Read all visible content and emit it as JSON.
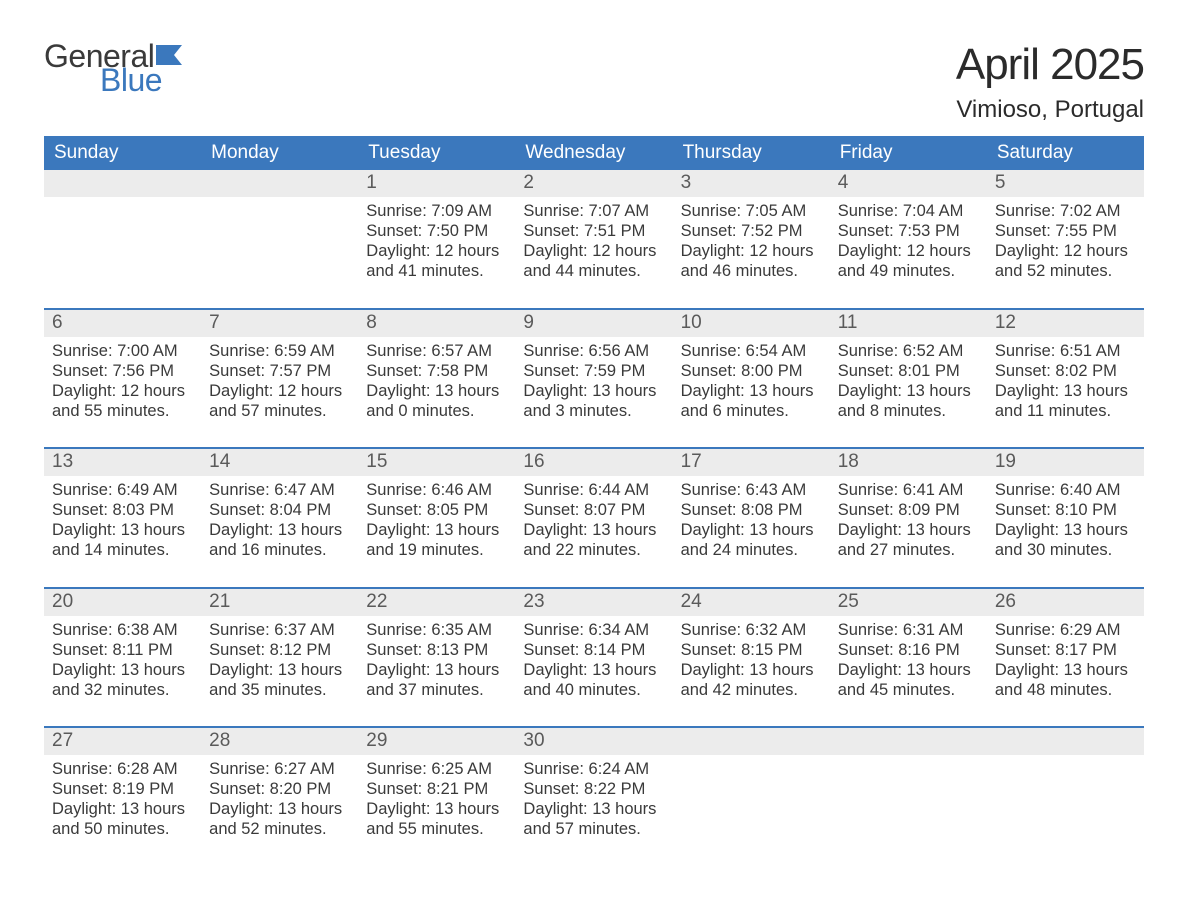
{
  "logo": {
    "text_general": "General",
    "text_blue": "Blue",
    "flag_color": "#3b78bd"
  },
  "title": "April 2025",
  "location": "Vimioso, Portugal",
  "colors": {
    "header_bg": "#3b78bd",
    "header_text": "#ffffff",
    "daynum_bg": "#ececec",
    "daynum_text": "#5a5a5a",
    "body_text": "#3a3a3a",
    "divider": "#3b78bd",
    "page_bg": "#ffffff"
  },
  "fonts": {
    "title_size_pt": 33,
    "location_size_pt": 18,
    "dow_size_pt": 14,
    "daynum_size_pt": 14,
    "body_size_pt": 12,
    "family": "Arial"
  },
  "days_of_week": [
    "Sunday",
    "Monday",
    "Tuesday",
    "Wednesday",
    "Thursday",
    "Friday",
    "Saturday"
  ],
  "weeks": [
    [
      {
        "num": "",
        "sunrise": "",
        "sunset": "",
        "daylight1": "",
        "daylight2": ""
      },
      {
        "num": "",
        "sunrise": "",
        "sunset": "",
        "daylight1": "",
        "daylight2": ""
      },
      {
        "num": "1",
        "sunrise": "Sunrise: 7:09 AM",
        "sunset": "Sunset: 7:50 PM",
        "daylight1": "Daylight: 12 hours",
        "daylight2": "and 41 minutes."
      },
      {
        "num": "2",
        "sunrise": "Sunrise: 7:07 AM",
        "sunset": "Sunset: 7:51 PM",
        "daylight1": "Daylight: 12 hours",
        "daylight2": "and 44 minutes."
      },
      {
        "num": "3",
        "sunrise": "Sunrise: 7:05 AM",
        "sunset": "Sunset: 7:52 PM",
        "daylight1": "Daylight: 12 hours",
        "daylight2": "and 46 minutes."
      },
      {
        "num": "4",
        "sunrise": "Sunrise: 7:04 AM",
        "sunset": "Sunset: 7:53 PM",
        "daylight1": "Daylight: 12 hours",
        "daylight2": "and 49 minutes."
      },
      {
        "num": "5",
        "sunrise": "Sunrise: 7:02 AM",
        "sunset": "Sunset: 7:55 PM",
        "daylight1": "Daylight: 12 hours",
        "daylight2": "and 52 minutes."
      }
    ],
    [
      {
        "num": "6",
        "sunrise": "Sunrise: 7:00 AM",
        "sunset": "Sunset: 7:56 PM",
        "daylight1": "Daylight: 12 hours",
        "daylight2": "and 55 minutes."
      },
      {
        "num": "7",
        "sunrise": "Sunrise: 6:59 AM",
        "sunset": "Sunset: 7:57 PM",
        "daylight1": "Daylight: 12 hours",
        "daylight2": "and 57 minutes."
      },
      {
        "num": "8",
        "sunrise": "Sunrise: 6:57 AM",
        "sunset": "Sunset: 7:58 PM",
        "daylight1": "Daylight: 13 hours",
        "daylight2": "and 0 minutes."
      },
      {
        "num": "9",
        "sunrise": "Sunrise: 6:56 AM",
        "sunset": "Sunset: 7:59 PM",
        "daylight1": "Daylight: 13 hours",
        "daylight2": "and 3 minutes."
      },
      {
        "num": "10",
        "sunrise": "Sunrise: 6:54 AM",
        "sunset": "Sunset: 8:00 PM",
        "daylight1": "Daylight: 13 hours",
        "daylight2": "and 6 minutes."
      },
      {
        "num": "11",
        "sunrise": "Sunrise: 6:52 AM",
        "sunset": "Sunset: 8:01 PM",
        "daylight1": "Daylight: 13 hours",
        "daylight2": "and 8 minutes."
      },
      {
        "num": "12",
        "sunrise": "Sunrise: 6:51 AM",
        "sunset": "Sunset: 8:02 PM",
        "daylight1": "Daylight: 13 hours",
        "daylight2": "and 11 minutes."
      }
    ],
    [
      {
        "num": "13",
        "sunrise": "Sunrise: 6:49 AM",
        "sunset": "Sunset: 8:03 PM",
        "daylight1": "Daylight: 13 hours",
        "daylight2": "and 14 minutes."
      },
      {
        "num": "14",
        "sunrise": "Sunrise: 6:47 AM",
        "sunset": "Sunset: 8:04 PM",
        "daylight1": "Daylight: 13 hours",
        "daylight2": "and 16 minutes."
      },
      {
        "num": "15",
        "sunrise": "Sunrise: 6:46 AM",
        "sunset": "Sunset: 8:05 PM",
        "daylight1": "Daylight: 13 hours",
        "daylight2": "and 19 minutes."
      },
      {
        "num": "16",
        "sunrise": "Sunrise: 6:44 AM",
        "sunset": "Sunset: 8:07 PM",
        "daylight1": "Daylight: 13 hours",
        "daylight2": "and 22 minutes."
      },
      {
        "num": "17",
        "sunrise": "Sunrise: 6:43 AM",
        "sunset": "Sunset: 8:08 PM",
        "daylight1": "Daylight: 13 hours",
        "daylight2": "and 24 minutes."
      },
      {
        "num": "18",
        "sunrise": "Sunrise: 6:41 AM",
        "sunset": "Sunset: 8:09 PM",
        "daylight1": "Daylight: 13 hours",
        "daylight2": "and 27 minutes."
      },
      {
        "num": "19",
        "sunrise": "Sunrise: 6:40 AM",
        "sunset": "Sunset: 8:10 PM",
        "daylight1": "Daylight: 13 hours",
        "daylight2": "and 30 minutes."
      }
    ],
    [
      {
        "num": "20",
        "sunrise": "Sunrise: 6:38 AM",
        "sunset": "Sunset: 8:11 PM",
        "daylight1": "Daylight: 13 hours",
        "daylight2": "and 32 minutes."
      },
      {
        "num": "21",
        "sunrise": "Sunrise: 6:37 AM",
        "sunset": "Sunset: 8:12 PM",
        "daylight1": "Daylight: 13 hours",
        "daylight2": "and 35 minutes."
      },
      {
        "num": "22",
        "sunrise": "Sunrise: 6:35 AM",
        "sunset": "Sunset: 8:13 PM",
        "daylight1": "Daylight: 13 hours",
        "daylight2": "and 37 minutes."
      },
      {
        "num": "23",
        "sunrise": "Sunrise: 6:34 AM",
        "sunset": "Sunset: 8:14 PM",
        "daylight1": "Daylight: 13 hours",
        "daylight2": "and 40 minutes."
      },
      {
        "num": "24",
        "sunrise": "Sunrise: 6:32 AM",
        "sunset": "Sunset: 8:15 PM",
        "daylight1": "Daylight: 13 hours",
        "daylight2": "and 42 minutes."
      },
      {
        "num": "25",
        "sunrise": "Sunrise: 6:31 AM",
        "sunset": "Sunset: 8:16 PM",
        "daylight1": "Daylight: 13 hours",
        "daylight2": "and 45 minutes."
      },
      {
        "num": "26",
        "sunrise": "Sunrise: 6:29 AM",
        "sunset": "Sunset: 8:17 PM",
        "daylight1": "Daylight: 13 hours",
        "daylight2": "and 48 minutes."
      }
    ],
    [
      {
        "num": "27",
        "sunrise": "Sunrise: 6:28 AM",
        "sunset": "Sunset: 8:19 PM",
        "daylight1": "Daylight: 13 hours",
        "daylight2": "and 50 minutes."
      },
      {
        "num": "28",
        "sunrise": "Sunrise: 6:27 AM",
        "sunset": "Sunset: 8:20 PM",
        "daylight1": "Daylight: 13 hours",
        "daylight2": "and 52 minutes."
      },
      {
        "num": "29",
        "sunrise": "Sunrise: 6:25 AM",
        "sunset": "Sunset: 8:21 PM",
        "daylight1": "Daylight: 13 hours",
        "daylight2": "and 55 minutes."
      },
      {
        "num": "30",
        "sunrise": "Sunrise: 6:24 AM",
        "sunset": "Sunset: 8:22 PM",
        "daylight1": "Daylight: 13 hours",
        "daylight2": "and 57 minutes."
      },
      {
        "num": "",
        "sunrise": "",
        "sunset": "",
        "daylight1": "",
        "daylight2": ""
      },
      {
        "num": "",
        "sunrise": "",
        "sunset": "",
        "daylight1": "",
        "daylight2": ""
      },
      {
        "num": "",
        "sunrise": "",
        "sunset": "",
        "daylight1": "",
        "daylight2": ""
      }
    ]
  ]
}
